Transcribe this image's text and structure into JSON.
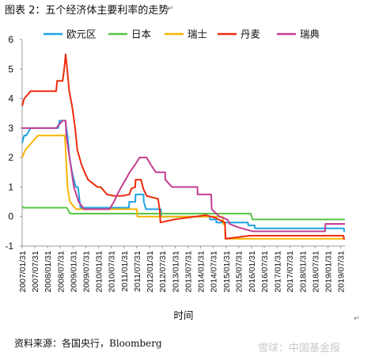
{
  "title": "图表 2：五个经济体主要利率的走势",
  "source": "资料来源：各国央行，Bloomberg",
  "watermark": "雪球：中国基金报",
  "return_mark": "↵",
  "chart_data": {
    "type": "line",
    "title": "",
    "xlabel": "时间",
    "ylabel": "",
    "ylim": [
      -1,
      6
    ],
    "yticks": [
      -1,
      0,
      1,
      2,
      3,
      4,
      5,
      6
    ],
    "x_range": [
      "2007-01-31",
      "2019-09-30"
    ],
    "xticks": [
      "2007/01/31",
      "2007/07/31",
      "2008/01/31",
      "2008/07/31",
      "2009/01/31",
      "2009/07/31",
      "2010/01/31",
      "2010/07/31",
      "2011/01/31",
      "2011/07/31",
      "2012/01/31",
      "2012/07/31",
      "2013/01/31",
      "2013/07/31",
      "2014/01/31",
      "2014/07/31",
      "2015/01/31",
      "2015/07/31",
      "2016/01/31",
      "2016/07/31",
      "2017/01/31",
      "2017/07/31",
      "2018/01/31",
      "2018/07/31",
      "2019/01/31",
      "2019/07/31"
    ],
    "legend_position": "top",
    "grid": false,
    "series": [
      {
        "name": "欧元区",
        "color": "#1ea2e3",
        "points": [
          [
            "2007-01-31",
            2.5
          ],
          [
            "2007-03-01",
            2.75
          ],
          [
            "2007-04-01",
            2.75
          ],
          [
            "2007-06-01",
            3.0
          ],
          [
            "2008-07-01",
            3.0
          ],
          [
            "2008-07-20",
            3.25
          ],
          [
            "2008-10-10",
            3.25
          ],
          [
            "2008-11-10",
            2.75
          ],
          [
            "2008-12-10",
            2.0
          ],
          [
            "2009-01-15",
            1.5
          ],
          [
            "2009-03-10",
            1.0
          ],
          [
            "2009-04-10",
            1.0
          ],
          [
            "2009-05-15",
            0.3
          ],
          [
            "2011-04-10",
            0.3
          ],
          [
            "2011-04-15",
            0.5
          ],
          [
            "2011-07-10",
            0.5
          ],
          [
            "2011-07-15",
            0.75
          ],
          [
            "2011-11-05",
            0.75
          ],
          [
            "2011-11-10",
            0.5
          ],
          [
            "2011-12-10",
            0.25
          ],
          [
            "2012-07-10",
            0.25
          ],
          [
            "2012-07-15",
            0.0
          ],
          [
            "2014-06-10",
            0.0
          ],
          [
            "2014-06-15",
            -0.1
          ],
          [
            "2014-09-10",
            -0.1
          ],
          [
            "2014-09-15",
            -0.2
          ],
          [
            "2015-12-10",
            -0.2
          ],
          [
            "2015-12-15",
            -0.3
          ],
          [
            "2016-03-15",
            -0.3
          ],
          [
            "2016-03-20",
            -0.4
          ],
          [
            "2019-09-15",
            -0.4
          ],
          [
            "2019-09-20",
            -0.5
          ],
          [
            "2019-09-30",
            -0.5
          ]
        ]
      },
      {
        "name": "日本",
        "color": "#56c545",
        "points": [
          [
            "2007-01-31",
            0.35
          ],
          [
            "2007-02-20",
            0.3
          ],
          [
            "2008-10-30",
            0.3
          ],
          [
            "2008-12-20",
            0.1
          ],
          [
            "2016-01-20",
            0.1
          ],
          [
            "2016-02-15",
            -0.1
          ],
          [
            "2019-09-30",
            -0.1
          ]
        ]
      },
      {
        "name": "瑞士",
        "color": "#f8b500",
        "points": [
          [
            "2007-01-31",
            2.0
          ],
          [
            "2007-03-15",
            2.25
          ],
          [
            "2007-06-15",
            2.5
          ],
          [
            "2007-09-15",
            2.75
          ],
          [
            "2008-10-01",
            2.75
          ],
          [
            "2008-10-10",
            2.5
          ],
          [
            "2008-11-10",
            1.0
          ],
          [
            "2008-12-15",
            0.5
          ],
          [
            "2009-03-15",
            0.25
          ],
          [
            "2011-08-01",
            0.25
          ],
          [
            "2011-08-10",
            0.0
          ],
          [
            "2014-12-15",
            0.0
          ],
          [
            "2014-12-20",
            -0.25
          ],
          [
            "2015-01-15",
            -0.25
          ],
          [
            "2015-01-20",
            -0.75
          ],
          [
            "2019-09-30",
            -0.75
          ]
        ]
      },
      {
        "name": "丹麦",
        "color": "#ee2a0c",
        "points": [
          [
            "2007-01-31",
            3.75
          ],
          [
            "2007-03-01",
            4.0
          ],
          [
            "2007-06-01",
            4.25
          ],
          [
            "2008-06-01",
            4.25
          ],
          [
            "2008-06-15",
            4.6
          ],
          [
            "2008-09-01",
            4.6
          ],
          [
            "2008-09-25",
            5.0
          ],
          [
            "2008-10-15",
            5.5
          ],
          [
            "2008-11-06",
            5.0
          ],
          [
            "2008-12-05",
            4.25
          ],
          [
            "2009-01-15",
            3.75
          ],
          [
            "2009-03-01",
            3.0
          ],
          [
            "2009-04-01",
            2.25
          ],
          [
            "2009-06-01",
            1.75
          ],
          [
            "2009-07-15",
            1.5
          ],
          [
            "2009-09-01",
            1.25
          ],
          [
            "2010-01-15",
            1.0
          ],
          [
            "2010-03-01",
            1.0
          ],
          [
            "2010-06-01",
            0.75
          ],
          [
            "2010-09-15",
            0.7
          ],
          [
            "2011-01-01",
            0.7
          ],
          [
            "2011-04-15",
            0.75
          ],
          [
            "2011-05-15",
            0.95
          ],
          [
            "2011-07-10",
            1.0
          ],
          [
            "2011-07-15",
            1.25
          ],
          [
            "2011-10-01",
            1.25
          ],
          [
            "2011-11-01",
            0.95
          ],
          [
            "2011-12-20",
            0.7
          ],
          [
            "2012-06-01",
            0.6
          ],
          [
            "2012-06-25",
            0.2
          ],
          [
            "2012-07-05",
            -0.2
          ],
          [
            "2013-01-15",
            -0.1
          ],
          [
            "2014-04-20",
            0.05
          ],
          [
            "2014-09-05",
            -0.05
          ],
          [
            "2015-01-15",
            -0.2
          ],
          [
            "2015-01-20",
            -0.5
          ],
          [
            "2015-01-25",
            -0.75
          ],
          [
            "2016-01-07",
            -0.65
          ],
          [
            "2019-09-10",
            -0.65
          ],
          [
            "2019-09-15",
            -0.75
          ],
          [
            "2019-09-30",
            -0.75
          ]
        ]
      },
      {
        "name": "瑞典",
        "color": "#c43c92",
        "points": [
          [
            "2007-01-31",
            3.0
          ],
          [
            "2008-06-01",
            3.0
          ],
          [
            "2008-09-01",
            3.25
          ],
          [
            "2008-10-15",
            3.25
          ],
          [
            "2008-10-25",
            2.75
          ],
          [
            "2008-12-10",
            2.0
          ],
          [
            "2009-02-10",
            1.0
          ],
          [
            "2009-04-21",
            0.5
          ],
          [
            "2009-07-08",
            0.25
          ],
          [
            "2010-07-06",
            0.25
          ],
          [
            "2010-09-07",
            0.5
          ],
          [
            "2010-10-26",
            0.75
          ],
          [
            "2010-12-21",
            1.0
          ],
          [
            "2011-02-21",
            1.25
          ],
          [
            "2011-04-20",
            1.5
          ],
          [
            "2011-07-04",
            1.75
          ],
          [
            "2011-09-10",
            2.0
          ],
          [
            "2011-12-20",
            2.0
          ],
          [
            "2012-02-20",
            1.75
          ],
          [
            "2012-05-01",
            1.5
          ],
          [
            "2012-09-10",
            1.5
          ],
          [
            "2012-09-12",
            1.25
          ],
          [
            "2012-12-18",
            1.0
          ],
          [
            "2013-12-17",
            1.0
          ],
          [
            "2013-12-19",
            0.75
          ],
          [
            "2014-07-02",
            0.75
          ],
          [
            "2014-07-09",
            0.25
          ],
          [
            "2014-10-27",
            0.0
          ],
          [
            "2015-02-18",
            -0.1
          ],
          [
            "2015-03-25",
            -0.25
          ],
          [
            "2015-07-08",
            -0.35
          ],
          [
            "2016-02-17",
            -0.5
          ],
          [
            "2018-12-20",
            -0.5
          ],
          [
            "2018-12-25",
            -0.25
          ],
          [
            "2019-09-30",
            -0.25
          ]
        ]
      }
    ]
  }
}
